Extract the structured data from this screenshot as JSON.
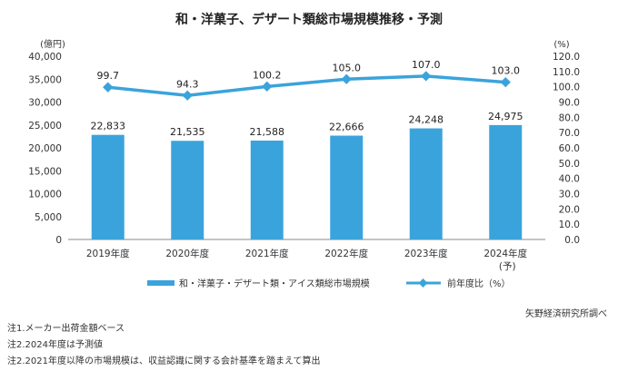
{
  "chart_data": {
    "type": "bar+line",
    "title": "和・洋菓子、デザート類総市場規模推移・予測",
    "categories": [
      "2019年度",
      "2020年度",
      "2021年度",
      "2022年度",
      "2023年度",
      "2024年度"
    ],
    "category_sublabels": [
      "",
      "",
      "",
      "",
      "",
      "(予)"
    ],
    "left_axis": {
      "unit": "(億円)",
      "ticks": [
        "0",
        "5,000",
        "10,000",
        "15,000",
        "20,000",
        "25,000",
        "30,000",
        "35,000",
        "40,000"
      ],
      "ylim": [
        0,
        40000
      ]
    },
    "right_axis": {
      "unit": "(%)",
      "ticks": [
        "0.0",
        "10.0",
        "20.0",
        "30.0",
        "40.0",
        "50.0",
        "60.0",
        "70.0",
        "80.0",
        "90.0",
        "100.0",
        "110.0",
        "120.0"
      ],
      "ylim": [
        0,
        120
      ]
    },
    "series": [
      {
        "name": "和・洋菓子・デザート類・アイス類総市場規模",
        "type": "bar",
        "axis": "left",
        "values": [
          22833,
          21535,
          21588,
          22666,
          24248,
          24975
        ],
        "labels": [
          "22,833",
          "21,535",
          "21,588",
          "22,666",
          "24,248",
          "24,975"
        ],
        "color": "#3ba3db"
      },
      {
        "name": "前年度比（%）",
        "type": "line",
        "axis": "right",
        "values": [
          99.7,
          94.3,
          100.2,
          105.0,
          107.0,
          103.0
        ],
        "labels": [
          "99.7",
          "94.3",
          "100.2",
          "105.0",
          "107.0",
          "103.0"
        ],
        "color": "#3ba3db"
      }
    ],
    "legend_placement": "bottom",
    "grid": false
  },
  "source": "矢野経済研究所調べ",
  "notes": [
    "注1.メーカー出荷金額ベース",
    "注2.2024年度は予測値",
    "注2.2021年度以降の市場規模は、収益認識に関する会計基準を踏まえて算出"
  ]
}
